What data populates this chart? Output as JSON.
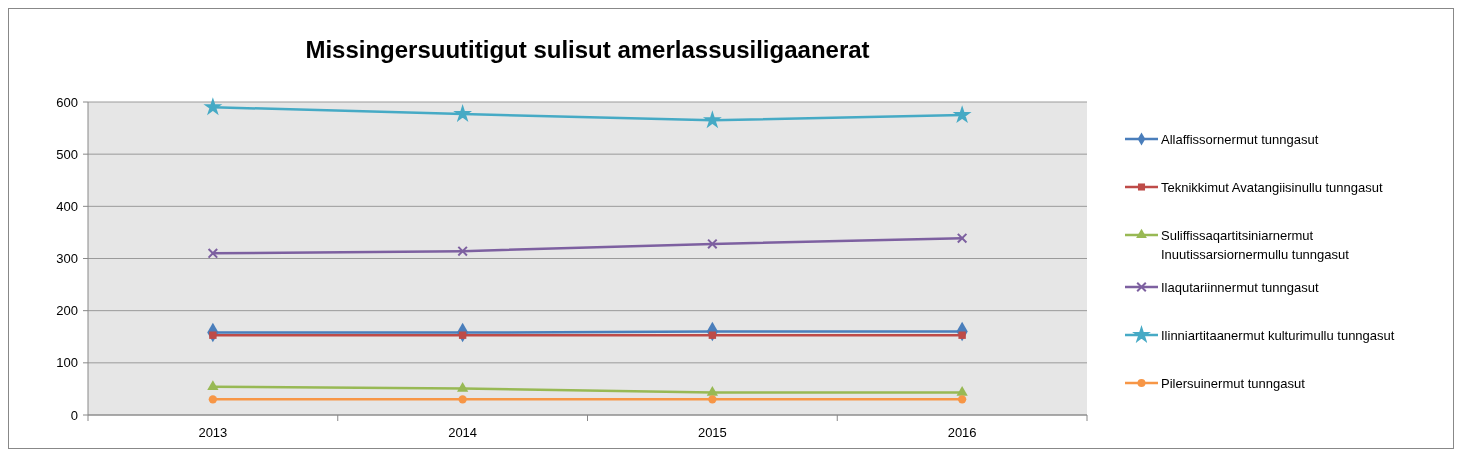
{
  "chart_data": {
    "type": "line",
    "title": "Missingersuutitigut sulisut amerlassusiligaanerat",
    "categories": [
      "2013",
      "2014",
      "2015",
      "2016"
    ],
    "ylim": [
      0,
      600
    ],
    "yticks": [
      0,
      100,
      200,
      300,
      400,
      500,
      600
    ],
    "grid": "y",
    "legend": "right",
    "series": [
      {
        "name": "Allaffissornermut tunngasut",
        "color": "#4a7ebb",
        "marker": "diamond",
        "values": [
          158,
          158,
          160,
          160
        ]
      },
      {
        "name": "Teknikkimut Avatangiisinullu tunngasut",
        "color": "#be4b48",
        "marker": "square",
        "values": [
          153,
          153,
          153,
          153
        ]
      },
      {
        "name": "Suliffissaqartitsiniarnermut Inuutissarsiornermullu tunngasut",
        "color": "#98b954",
        "marker": "triangle",
        "values": [
          54,
          51,
          43,
          43
        ]
      },
      {
        "name": "Ilaqutariinnermut tunngasut",
        "color": "#7d60a0",
        "marker": "cross",
        "values": [
          310,
          314,
          328,
          339
        ]
      },
      {
        "name": "Ilinniartitaanermut kulturimullu tunngasut",
        "color": "#46aac5",
        "marker": "star",
        "values": [
          590,
          577,
          565,
          575
        ]
      },
      {
        "name": "Pilersuinermut tunngasut",
        "color": "#f79646",
        "marker": "circle",
        "values": [
          30,
          30,
          30,
          30
        ]
      }
    ]
  }
}
